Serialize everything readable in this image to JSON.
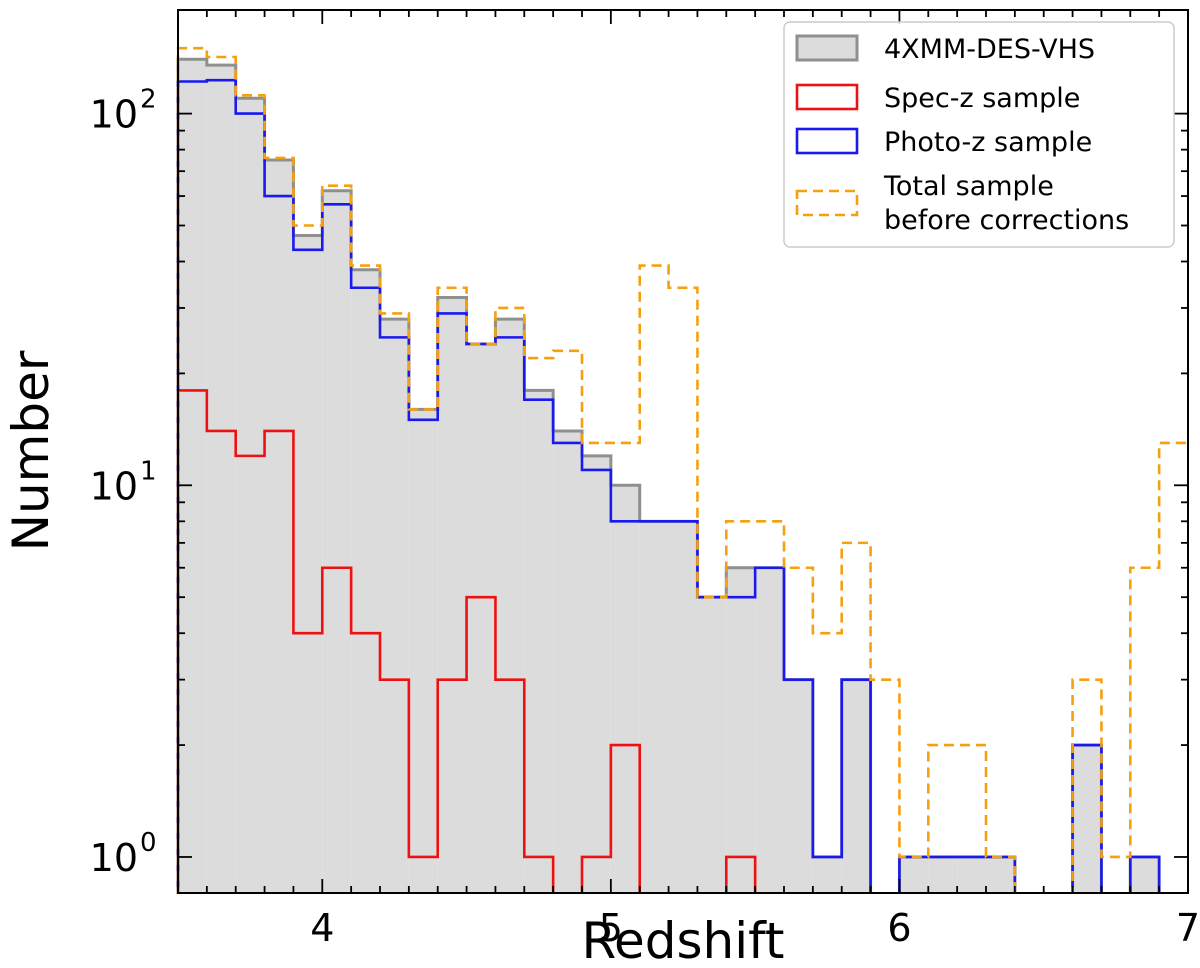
{
  "chart_data": {
    "type": "histogram",
    "title": "",
    "xlabel": "Redshift",
    "ylabel": "Number",
    "xlim": [
      3.5,
      7.0
    ],
    "ylim": [
      0.8,
      190
    ],
    "yscale": "log",
    "legend_position": "top-right",
    "bin_edges": [
      3.5,
      3.6,
      3.7,
      3.8,
      3.9,
      4.0,
      4.1,
      4.2,
      4.3,
      4.4,
      4.5,
      4.6,
      4.7,
      4.8,
      4.9,
      5.0,
      5.1,
      5.2,
      5.3,
      5.4,
      5.5,
      5.6,
      5.7,
      5.8,
      5.9,
      6.0,
      6.1,
      6.2,
      6.3,
      6.4,
      6.5,
      6.6,
      6.7,
      6.8,
      6.9,
      7.0
    ],
    "x_ticks": [
      {
        "value": 4,
        "label": "4"
      },
      {
        "value": 5,
        "label": "5"
      },
      {
        "value": 6,
        "label": "6"
      },
      {
        "value": 7,
        "label": "7"
      }
    ],
    "y_ticks": [
      {
        "value": 1,
        "base": "10",
        "exp": "0"
      },
      {
        "value": 10,
        "base": "10",
        "exp": "1"
      },
      {
        "value": 100,
        "base": "10",
        "exp": "2"
      }
    ],
    "series": [
      {
        "name": "4XMM-DES-VHS",
        "style": "filled",
        "color": "#8f8f8f",
        "fill": "#dcdcdc",
        "counts": [
          140,
          135,
          110,
          75,
          47,
          62,
          38,
          28,
          16,
          32,
          24,
          28,
          18,
          14,
          12,
          10,
          8,
          8,
          5,
          6,
          6,
          3,
          1,
          3,
          0,
          1,
          1,
          1,
          1,
          0,
          0,
          2,
          0,
          1,
          0
        ]
      },
      {
        "name": "Spec-z sample",
        "style": "step",
        "color": "#ee1111",
        "counts": [
          18,
          14,
          12,
          14,
          4,
          6,
          4,
          3,
          1,
          3,
          5,
          3,
          1,
          0,
          1,
          2,
          0,
          0,
          0,
          1,
          0,
          0,
          0,
          0,
          0,
          0,
          0,
          0,
          0,
          0,
          0,
          0,
          0,
          0,
          0
        ]
      },
      {
        "name": "Photo-z sample",
        "style": "step",
        "color": "#1a1aee",
        "counts": [
          122,
          123,
          100,
          60,
          43,
          57,
          34,
          25,
          15,
          29,
          24,
          25,
          17,
          13,
          11,
          8,
          8,
          8,
          5,
          5,
          6,
          3,
          1,
          3,
          0,
          1,
          1,
          1,
          1,
          0,
          0,
          2,
          0,
          1,
          0
        ]
      },
      {
        "name": "Total sample\nbefore corrections",
        "style": "dashed",
        "color": "#f5a00f",
        "counts": [
          150,
          142,
          112,
          76,
          50,
          64,
          39,
          29,
          16,
          34,
          24,
          30,
          22,
          23,
          13,
          13,
          39,
          34,
          5,
          8,
          8,
          6,
          4,
          7,
          3,
          1,
          2,
          2,
          1,
          0,
          0,
          3,
          1,
          6,
          13
        ]
      }
    ]
  }
}
